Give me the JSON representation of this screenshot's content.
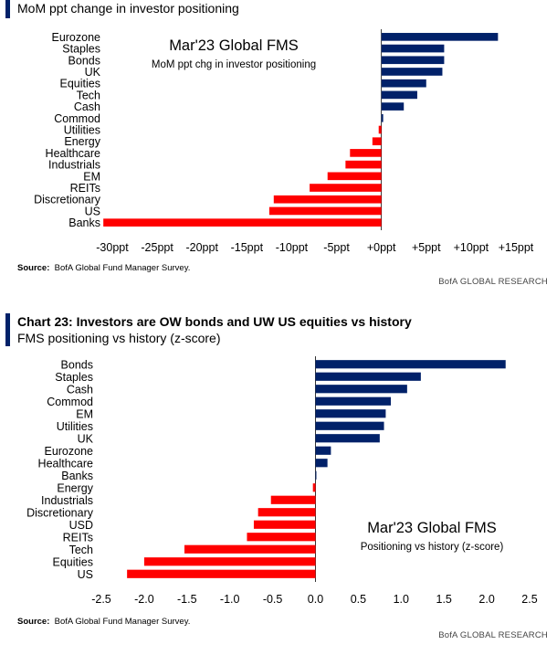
{
  "top_panel": {
    "subtitle": "MoM ppt change in investor positioning",
    "source_label": "Source:",
    "source_text": "BofA Global Fund Manager Survey.",
    "brand": "BofA GLOBAL RESEARCH"
  },
  "bottom_panel": {
    "title": "Chart 23: Investors are OW bonds and UW US equities vs history",
    "subtitle": "FMS positioning vs history (z-score)",
    "source_label": "Source:",
    "source_text": "BofA Global Fund Manager Survey.",
    "brand": "BofA GLOBAL RESEARCH"
  },
  "colors": {
    "positive": "#012169",
    "negative": "#ff0000",
    "accent": "#012169"
  },
  "chart_data": [
    {
      "type": "bar",
      "orientation": "horizontal",
      "title": "",
      "inset_title": "Mar'23 Global FMS",
      "inset_subtitle": "MoM ppt chg in investor positioning",
      "categories": [
        "Eurozone",
        "Staples",
        "Bonds",
        "UK",
        "Equities",
        "Tech",
        "Cash",
        "Commod",
        "Utilities",
        "Energy",
        "Healthcare",
        "Industrials",
        "EM",
        "REITs",
        "Discretionary",
        "US",
        "Banks"
      ],
      "values": [
        13,
        7,
        7,
        6.8,
        5,
        4,
        2.5,
        0.2,
        -0.3,
        -1,
        -3.5,
        -4,
        -6,
        -8,
        -12,
        -12.5,
        -31
      ],
      "xlim": [
        -30,
        15
      ],
      "xticks": [
        -30,
        -25,
        -20,
        -15,
        -10,
        -5,
        0,
        5,
        10,
        15
      ],
      "xtick_labels": [
        "-30ppt",
        "-25ppt",
        "-20ppt",
        "-15ppt",
        "-10ppt",
        "-5ppt",
        "+0ppt",
        "+5ppt",
        "+10ppt",
        "+15ppt"
      ],
      "grid": false
    },
    {
      "type": "bar",
      "orientation": "horizontal",
      "title": "",
      "inset_title": "Mar'23 Global FMS",
      "inset_subtitle": "Positioning vs history (z-score)",
      "categories": [
        "Bonds",
        "Staples",
        "Cash",
        "Commod",
        "EM",
        "Utilities",
        "UK",
        "Eurozone",
        "Healthcare",
        "Banks",
        "Energy",
        "Industrials",
        "Discretionary",
        "USD",
        "REITs",
        "Tech",
        "Equities",
        "US"
      ],
      "values": [
        2.22,
        1.23,
        1.07,
        0.88,
        0.82,
        0.8,
        0.75,
        0.18,
        0.14,
        0.01,
        -0.03,
        -0.52,
        -0.67,
        -0.72,
        -0.8,
        -1.53,
        -2.0,
        -2.2
      ],
      "xlim": [
        -2.5,
        2.5
      ],
      "xticks": [
        -2.5,
        -2,
        -1.5,
        -1,
        -0.5,
        0,
        0.5,
        1,
        1.5,
        2,
        2.5
      ],
      "xtick_labels": [
        "-2.5",
        "-2.0",
        "-1.5",
        "-1.0",
        "-0.5",
        "0.0",
        "0.5",
        "1.0",
        "1.5",
        "2.0",
        "2.5"
      ],
      "grid": false
    }
  ]
}
